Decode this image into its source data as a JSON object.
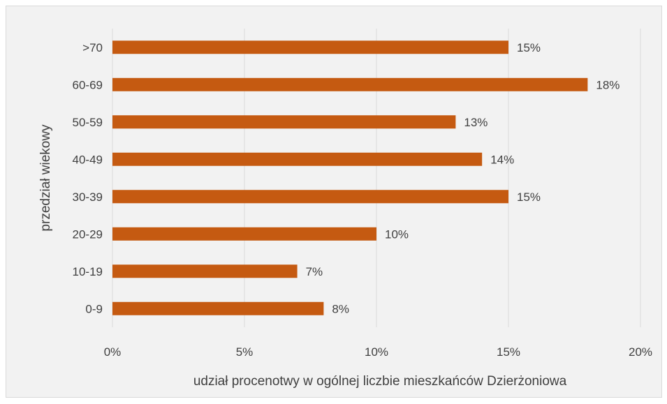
{
  "chart_data": {
    "type": "bar",
    "orientation": "horizontal",
    "categories": [
      "0-9",
      "10-19",
      "20-29",
      "30-39",
      "40-49",
      "50-59",
      "60-69",
      ">70"
    ],
    "values": [
      8,
      7,
      10,
      15,
      14,
      13,
      18,
      15
    ],
    "data_labels": [
      "8%",
      "7%",
      "10%",
      "15%",
      "14%",
      "13%",
      "18%",
      "15%"
    ],
    "x_ticks": [
      "0%",
      "5%",
      "10%",
      "15%",
      "20%"
    ],
    "x_tick_values": [
      0,
      5,
      10,
      15,
      20
    ],
    "xlim": [
      0,
      20
    ],
    "xlabel": "udział procenotwy w ogólnej liczbie mieszkańców Dzierżoniowa",
    "ylabel": "przedział wiekowy",
    "title": "",
    "grid": true,
    "bar_color": "#c55a11",
    "background_color": "#f2f2f2",
    "grid_color": "#d9d9d9"
  }
}
